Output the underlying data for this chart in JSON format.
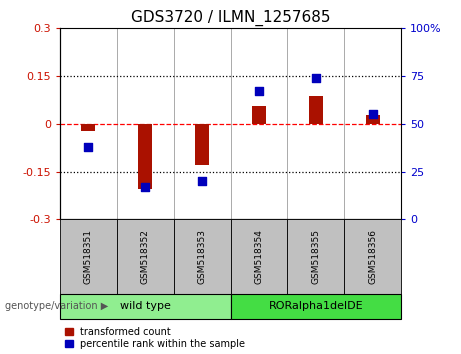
{
  "title": "GDS3720 / ILMN_1257685",
  "samples": [
    "GSM518351",
    "GSM518352",
    "GSM518353",
    "GSM518354",
    "GSM518355",
    "GSM518356"
  ],
  "red_values": [
    -0.022,
    -0.205,
    -0.128,
    0.055,
    0.088,
    0.028
  ],
  "blue_values": [
    38,
    17,
    20,
    67,
    74,
    55
  ],
  "ylim_left": [
    -0.3,
    0.3
  ],
  "ylim_right": [
    0,
    100
  ],
  "yticks_left": [
    -0.3,
    -0.15,
    0,
    0.15,
    0.3
  ],
  "yticks_right": [
    0,
    25,
    50,
    75,
    100
  ],
  "ytick_labels_left": [
    "-0.3",
    "-0.15",
    "0",
    "0.15",
    "0.3"
  ],
  "ytick_labels_right": [
    "0",
    "25",
    "50",
    "75",
    "100%"
  ],
  "hlines": [
    -0.15,
    0,
    0.15
  ],
  "hline_styles": [
    "dotted",
    "dashed",
    "dotted"
  ],
  "hline_colors": [
    "black",
    "red",
    "black"
  ],
  "groups": [
    {
      "label": "wild type",
      "indices": [
        0,
        1,
        2
      ],
      "color": "#90EE90"
    },
    {
      "label": "RORalpha1delDE",
      "indices": [
        3,
        4,
        5
      ],
      "color": "#44DD44"
    }
  ],
  "bar_color": "#AA1100",
  "dot_color": "#0000BB",
  "bar_width": 0.25,
  "dot_size": 28,
  "legend_red_label": "transformed count",
  "legend_blue_label": "percentile rank within the sample",
  "genotype_label": "genotype/variation",
  "bg_color": "#FFFFFF",
  "plot_bg_color": "#FFFFFF",
  "tick_area_color": "#C0C0C0",
  "title_fontsize": 11,
  "tick_fontsize": 8,
  "left_tick_color": "#CC1100",
  "right_tick_color": "#0000CC",
  "separator_color": "#888888"
}
